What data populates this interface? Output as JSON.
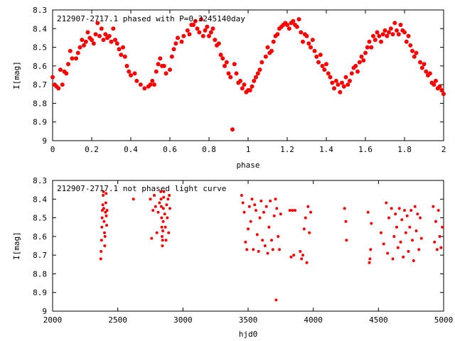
{
  "chart_data": [
    {
      "type": "scatter",
      "title": "212907-2717.1 phased with P=0.3245140day",
      "xlabel": "phase",
      "ylabel": "I[mag]",
      "xlim": [
        0,
        2
      ],
      "ylim": [
        8.3,
        9.0
      ],
      "y_inverted": true,
      "grid": false,
      "marker_color": "#ff0000",
      "xticks": [
        0,
        0.2,
        0.4,
        0.6,
        0.8,
        1.0,
        1.2,
        1.4,
        1.6,
        1.8,
        2.0
      ],
      "xtick_labels": [
        "0",
        "0.2",
        "0.4",
        "0.6",
        "0.8",
        "1",
        "1.2",
        "1.4",
        "1.6",
        "1.8",
        "2"
      ],
      "yticks": [
        8.3,
        8.4,
        8.5,
        8.6,
        8.7,
        8.8,
        8.9,
        9.0
      ],
      "ytick_labels": [
        "8.3",
        "8.4",
        "8.5",
        "8.6",
        "8.7",
        "8.8",
        "8.9",
        "9"
      ],
      "points": [
        [
          0.0,
          8.66
        ],
        [
          0.01,
          8.7
        ],
        [
          0.02,
          8.71
        ],
        [
          0.03,
          8.72
        ],
        [
          0.04,
          8.62
        ],
        [
          0.05,
          8.7
        ],
        [
          0.06,
          8.63
        ],
        [
          0.07,
          8.64
        ],
        [
          0.08,
          8.59
        ],
        [
          0.09,
          8.52
        ],
        [
          0.1,
          8.56
        ],
        [
          0.12,
          8.56
        ],
        [
          0.13,
          8.53
        ],
        [
          0.14,
          8.5
        ],
        [
          0.15,
          8.46
        ],
        [
          0.16,
          8.49
        ],
        [
          0.17,
          8.47
        ],
        [
          0.18,
          8.42
        ],
        [
          0.19,
          8.45
        ],
        [
          0.2,
          8.46
        ],
        [
          0.21,
          8.48
        ],
        [
          0.22,
          8.43
        ],
        [
          0.23,
          8.37
        ],
        [
          0.24,
          8.44
        ],
        [
          0.25,
          8.4
        ],
        [
          0.26,
          8.46
        ],
        [
          0.27,
          8.43
        ],
        [
          0.28,
          8.45
        ],
        [
          0.29,
          8.44
        ],
        [
          0.3,
          8.47
        ],
        [
          0.31,
          8.4
        ],
        [
          0.32,
          8.46
        ],
        [
          0.33,
          8.48
        ],
        [
          0.34,
          8.51
        ],
        [
          0.35,
          8.54
        ],
        [
          0.36,
          8.5
        ],
        [
          0.37,
          8.55
        ],
        [
          0.38,
          8.6
        ],
        [
          0.39,
          8.63
        ],
        [
          0.4,
          8.65
        ],
        [
          0.42,
          8.64
        ],
        [
          0.43,
          8.68
        ],
        [
          0.45,
          8.7
        ],
        [
          0.47,
          8.72
        ],
        [
          0.49,
          8.71
        ],
        [
          0.5,
          8.7
        ],
        [
          0.51,
          8.68
        ],
        [
          0.52,
          8.7
        ],
        [
          0.53,
          8.63
        ],
        [
          0.54,
          8.59
        ],
        [
          0.55,
          8.56
        ],
        [
          0.56,
          8.6
        ],
        [
          0.57,
          8.6
        ],
        [
          0.58,
          8.64
        ],
        [
          0.6,
          8.62
        ],
        [
          0.61,
          8.55
        ],
        [
          0.62,
          8.51
        ],
        [
          0.63,
          8.48
        ],
        [
          0.64,
          8.45
        ],
        [
          0.66,
          8.47
        ],
        [
          0.67,
          8.44
        ],
        [
          0.69,
          8.41
        ],
        [
          0.7,
          8.43
        ],
        [
          0.71,
          8.38
        ],
        [
          0.72,
          8.38
        ],
        [
          0.73,
          8.36
        ],
        [
          0.74,
          8.4
        ],
        [
          0.75,
          8.42
        ],
        [
          0.76,
          8.35
        ],
        [
          0.77,
          8.44
        ],
        [
          0.78,
          8.41
        ],
        [
          0.79,
          8.39
        ],
        [
          0.8,
          8.44
        ],
        [
          0.81,
          8.42
        ],
        [
          0.82,
          8.4
        ],
        [
          0.83,
          8.46
        ],
        [
          0.84,
          8.49
        ],
        [
          0.85,
          8.48
        ],
        [
          0.86,
          8.54
        ],
        [
          0.87,
          8.56
        ],
        [
          0.88,
          8.6
        ],
        [
          0.89,
          8.58
        ],
        [
          0.9,
          8.64
        ],
        [
          0.91,
          8.66
        ],
        [
          0.92,
          8.94
        ],
        [
          0.93,
          8.59
        ],
        [
          0.94,
          8.64
        ],
        [
          0.95,
          8.69
        ],
        [
          0.96,
          8.68
        ],
        [
          0.97,
          8.72
        ],
        [
          0.98,
          8.7
        ],
        [
          0.99,
          8.74
        ],
        [
          1.0,
          8.73
        ],
        [
          1.01,
          8.73
        ],
        [
          1.02,
          8.71
        ],
        [
          1.03,
          8.68
        ],
        [
          1.04,
          8.66
        ],
        [
          1.05,
          8.64
        ],
        [
          1.06,
          8.62
        ],
        [
          1.07,
          8.58
        ],
        [
          1.09,
          8.55
        ],
        [
          1.1,
          8.5
        ],
        [
          1.11,
          8.53
        ],
        [
          1.12,
          8.52
        ],
        [
          1.13,
          8.47
        ],
        [
          1.14,
          8.44
        ],
        [
          1.15,
          8.43
        ],
        [
          1.16,
          8.4
        ],
        [
          1.17,
          8.39
        ],
        [
          1.18,
          8.38
        ],
        [
          1.19,
          8.37
        ],
        [
          1.2,
          8.38
        ],
        [
          1.21,
          8.4
        ],
        [
          1.22,
          8.37
        ],
        [
          1.23,
          8.36
        ],
        [
          1.24,
          8.38
        ],
        [
          1.25,
          8.39
        ],
        [
          1.26,
          8.35
        ],
        [
          1.27,
          8.42
        ],
        [
          1.28,
          8.47
        ],
        [
          1.29,
          8.43
        ],
        [
          1.3,
          8.44
        ],
        [
          1.31,
          8.48
        ],
        [
          1.32,
          8.5
        ],
        [
          1.33,
          8.46
        ],
        [
          1.34,
          8.52
        ],
        [
          1.35,
          8.55
        ],
        [
          1.36,
          8.58
        ],
        [
          1.37,
          8.54
        ],
        [
          1.38,
          8.6
        ],
        [
          1.39,
          8.62
        ],
        [
          1.4,
          8.59
        ],
        [
          1.41,
          8.64
        ],
        [
          1.42,
          8.66
        ],
        [
          1.43,
          8.69
        ],
        [
          1.44,
          8.72
        ],
        [
          1.45,
          8.68
        ],
        [
          1.46,
          8.7
        ],
        [
          1.47,
          8.74
        ],
        [
          1.48,
          8.69
        ],
        [
          1.49,
          8.71
        ],
        [
          1.5,
          8.66
        ],
        [
          1.51,
          8.7
        ],
        [
          1.52,
          8.68
        ],
        [
          1.53,
          8.64
        ],
        [
          1.54,
          8.61
        ],
        [
          1.55,
          8.6
        ],
        [
          1.56,
          8.63
        ],
        [
          1.57,
          8.58
        ],
        [
          1.58,
          8.55
        ],
        [
          1.59,
          8.57
        ],
        [
          1.6,
          8.53
        ],
        [
          1.61,
          8.5
        ],
        [
          1.62,
          8.47
        ],
        [
          1.63,
          8.5
        ],
        [
          1.64,
          8.44
        ],
        [
          1.65,
          8.46
        ],
        [
          1.66,
          8.42
        ],
        [
          1.67,
          8.44
        ],
        [
          1.68,
          8.47
        ],
        [
          1.69,
          8.43
        ],
        [
          1.7,
          8.41
        ],
        [
          1.71,
          8.44
        ],
        [
          1.72,
          8.42
        ],
        [
          1.73,
          8.4
        ],
        [
          1.74,
          8.43
        ],
        [
          1.75,
          8.37
        ],
        [
          1.76,
          8.41
        ],
        [
          1.77,
          8.43
        ],
        [
          1.78,
          8.38
        ],
        [
          1.79,
          8.41
        ],
        [
          1.8,
          8.42
        ],
        [
          1.81,
          8.47
        ],
        [
          1.82,
          8.44
        ],
        [
          1.83,
          8.49
        ],
        [
          1.84,
          8.52
        ],
        [
          1.85,
          8.55
        ],
        [
          1.86,
          8.53
        ],
        [
          1.88,
          8.58
        ],
        [
          1.89,
          8.61
        ],
        [
          1.9,
          8.59
        ],
        [
          1.91,
          8.63
        ],
        [
          1.92,
          8.65
        ],
        [
          1.93,
          8.64
        ],
        [
          1.94,
          8.69
        ],
        [
          1.95,
          8.7
        ],
        [
          1.96,
          8.68
        ],
        [
          1.97,
          8.72
        ],
        [
          1.98,
          8.71
        ],
        [
          1.99,
          8.73
        ],
        [
          2.0,
          8.75
        ]
      ]
    },
    {
      "type": "scatter",
      "title": "212907-2717.1 not phased light curve",
      "xlabel": "hjd0",
      "ylabel": "I[mag]",
      "xlim": [
        2000,
        5000
      ],
      "ylim": [
        8.3,
        9.0
      ],
      "y_inverted": true,
      "grid": false,
      "marker_color": "#ff0000",
      "xticks": [
        2000,
        2500,
        3000,
        3500,
        4000,
        4500,
        5000
      ],
      "xtick_labels": [
        "2000",
        "2500",
        "3000",
        "3500",
        "4000",
        "4500",
        "5000"
      ],
      "yticks": [
        8.3,
        8.4,
        8.5,
        8.6,
        8.7,
        8.8,
        8.9,
        9.0
      ],
      "ytick_labels": [
        "8.3",
        "8.4",
        "8.5",
        "8.6",
        "8.7",
        "8.8",
        "8.9",
        "9"
      ],
      "points": [
        [
          2370,
          8.72
        ],
        [
          2372,
          8.68
        ],
        [
          2375,
          8.62
        ],
        [
          2378,
          8.55
        ],
        [
          2380,
          8.5
        ],
        [
          2382,
          8.46
        ],
        [
          2385,
          8.43
        ],
        [
          2388,
          8.38
        ],
        [
          2390,
          8.36
        ],
        [
          2392,
          8.45
        ],
        [
          2395,
          8.52
        ],
        [
          2398,
          8.58
        ],
        [
          2400,
          8.65
        ],
        [
          2402,
          8.6
        ],
        [
          2405,
          8.47
        ],
        [
          2408,
          8.42
        ],
        [
          2410,
          8.37
        ],
        [
          2412,
          8.49
        ],
        [
          2415,
          8.54
        ],
        [
          2418,
          8.46
        ],
        [
          2620,
          8.4
        ],
        [
          2750,
          8.4
        ],
        [
          2760,
          8.61
        ],
        [
          2770,
          8.46
        ],
        [
          2780,
          8.38
        ],
        [
          2790,
          8.44
        ],
        [
          2800,
          8.58
        ],
        [
          2810,
          8.47
        ],
        [
          2820,
          8.42
        ],
        [
          2830,
          8.36
        ],
        [
          2832,
          8.4
        ],
        [
          2834,
          8.44
        ],
        [
          2836,
          8.5
        ],
        [
          2838,
          8.55
        ],
        [
          2840,
          8.6
        ],
        [
          2842,
          8.65
        ],
        [
          2844,
          8.62
        ],
        [
          2846,
          8.57
        ],
        [
          2848,
          8.52
        ],
        [
          2850,
          8.45
        ],
        [
          2852,
          8.39
        ],
        [
          2854,
          8.36
        ],
        [
          2860,
          8.48
        ],
        [
          2865,
          8.55
        ],
        [
          2870,
          8.62
        ],
        [
          2875,
          8.43
        ],
        [
          2880,
          8.5
        ],
        [
          2885,
          8.4
        ],
        [
          2890,
          8.58
        ],
        [
          2895,
          8.38
        ],
        [
          2900,
          8.45
        ],
        [
          3450,
          8.38
        ],
        [
          3460,
          8.42
        ],
        [
          3470,
          8.47
        ],
        [
          3480,
          8.63
        ],
        [
          3490,
          8.67
        ],
        [
          3500,
          8.56
        ],
        [
          3510,
          8.44
        ],
        [
          3520,
          8.52
        ],
        [
          3530,
          8.4
        ],
        [
          3540,
          8.67
        ],
        [
          3550,
          8.43
        ],
        [
          3560,
          8.46
        ],
        [
          3570,
          8.59
        ],
        [
          3580,
          8.68
        ],
        [
          3590,
          8.5
        ],
        [
          3600,
          8.41
        ],
        [
          3610,
          8.62
        ],
        [
          3620,
          8.47
        ],
        [
          3630,
          8.65
        ],
        [
          3640,
          8.44
        ],
        [
          3650,
          8.69
        ],
        [
          3660,
          8.55
        ],
        [
          3670,
          8.41
        ],
        [
          3680,
          8.62
        ],
        [
          3690,
          8.67
        ],
        [
          3700,
          8.49
        ],
        [
          3710,
          8.4
        ],
        [
          3715,
          8.94
        ],
        [
          3720,
          8.45
        ],
        [
          3730,
          8.6
        ],
        [
          3740,
          8.67
        ],
        [
          3750,
          8.48
        ],
        [
          3820,
          8.46
        ],
        [
          3830,
          8.71
        ],
        [
          3840,
          8.46
        ],
        [
          3850,
          8.7
        ],
        [
          3860,
          8.46
        ],
        [
          3900,
          8.68
        ],
        [
          3910,
          8.72
        ],
        [
          3920,
          8.7
        ],
        [
          3930,
          8.56
        ],
        [
          3940,
          8.5
        ],
        [
          3950,
          8.74
        ],
        [
          3960,
          8.44
        ],
        [
          3970,
          8.58
        ],
        [
          3980,
          8.47
        ],
        [
          4240,
          8.45
        ],
        [
          4250,
          8.52
        ],
        [
          4255,
          8.62
        ],
        [
          4420,
          8.47
        ],
        [
          4430,
          8.74
        ],
        [
          4435,
          8.72
        ],
        [
          4440,
          8.67
        ],
        [
          4445,
          8.53
        ],
        [
          4520,
          8.58
        ],
        [
          4540,
          8.64
        ],
        [
          4560,
          8.42
        ],
        [
          4570,
          8.69
        ],
        [
          4580,
          8.5
        ],
        [
          4600,
          8.45
        ],
        [
          4610,
          8.72
        ],
        [
          4620,
          8.6
        ],
        [
          4630,
          8.48
        ],
        [
          4640,
          8.55
        ],
        [
          4650,
          8.66
        ],
        [
          4660,
          8.45
        ],
        [
          4670,
          8.63
        ],
        [
          4680,
          8.51
        ],
        [
          4690,
          8.71
        ],
        [
          4700,
          8.46
        ],
        [
          4710,
          8.58
        ],
        [
          4720,
          8.49
        ],
        [
          4730,
          8.68
        ],
        [
          4740,
          8.55
        ],
        [
          4750,
          8.46
        ],
        [
          4760,
          8.62
        ],
        [
          4770,
          8.73
        ],
        [
          4780,
          8.44
        ],
        [
          4790,
          8.57
        ],
        [
          4800,
          8.48
        ],
        [
          4810,
          8.67
        ],
        [
          4820,
          8.5
        ],
        [
          4830,
          8.61
        ],
        [
          4920,
          8.44
        ],
        [
          4930,
          8.63
        ],
        [
          4940,
          8.52
        ],
        [
          4950,
          8.67
        ],
        [
          4960,
          8.46
        ],
        [
          4970,
          8.6
        ],
        [
          4980,
          8.66
        ],
        [
          4990,
          8.55
        ]
      ]
    }
  ]
}
